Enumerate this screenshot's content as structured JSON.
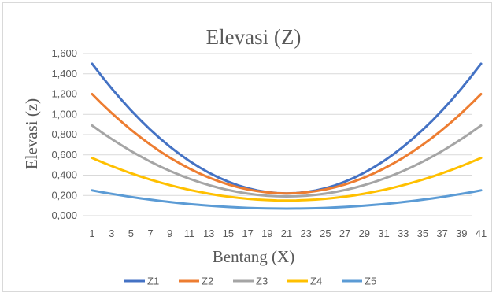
{
  "chart_data": {
    "type": "line",
    "title": "Elevasi (Z)",
    "xlabel": "Bentang (X)",
    "ylabel": "Elevasi (z)",
    "ylim": [
      0,
      1.6
    ],
    "yticks": [
      "0,000",
      "0,200",
      "0,400",
      "0,600",
      "0,800",
      "1,000",
      "1,200",
      "1,400",
      "1,600"
    ],
    "xticks": [
      "1",
      "3",
      "5",
      "7",
      "9",
      "11",
      "13",
      "15",
      "17",
      "19",
      "21",
      "23",
      "25",
      "27",
      "29",
      "31",
      "33",
      "35",
      "37",
      "39",
      "41"
    ],
    "grid": true,
    "legend": "bottom",
    "x": [
      1,
      2,
      3,
      4,
      5,
      6,
      7,
      8,
      9,
      10,
      11,
      12,
      13,
      14,
      15,
      16,
      17,
      18,
      19,
      20,
      21,
      22,
      23,
      24,
      25,
      26,
      27,
      28,
      29,
      30,
      31,
      32,
      33,
      34,
      35,
      36,
      37,
      38,
      39,
      40,
      41
    ],
    "series": [
      {
        "name": "Z1",
        "color": "#4472c4",
        "vertex": 0.22,
        "end": 1.5
      },
      {
        "name": "Z2",
        "color": "#ed7d31",
        "vertex": 0.22,
        "end": 1.2
      },
      {
        "name": "Z3",
        "color": "#a5a5a5",
        "vertex": 0.19,
        "end": 0.89
      },
      {
        "name": "Z4",
        "color": "#ffc000",
        "vertex": 0.15,
        "end": 0.57
      },
      {
        "name": "Z5",
        "color": "#5b9bd5",
        "vertex": 0.07,
        "end": 0.25
      }
    ]
  }
}
